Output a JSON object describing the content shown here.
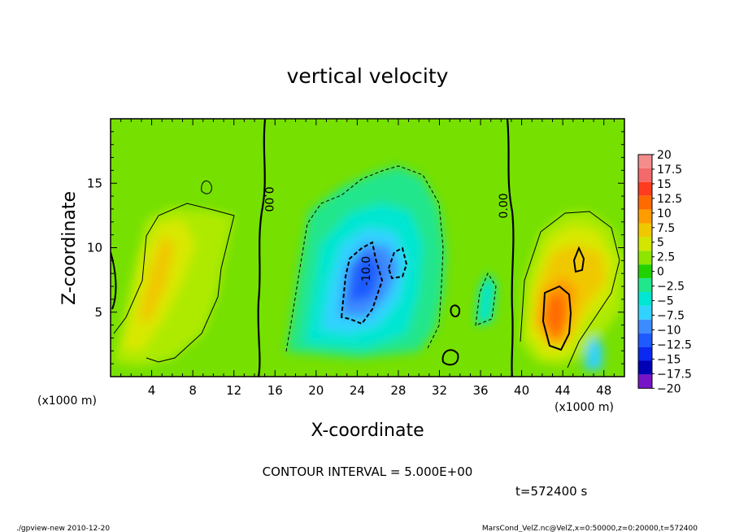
{
  "chart_data": {
    "type": "heatmap",
    "title": "vertical velocity",
    "xlabel": "X-coordinate",
    "ylabel": "Z-coordinate",
    "x_unit_left": "(x1000 m)",
    "x_unit_right": "(x1000 m)",
    "xlim": [
      0,
      50
    ],
    "ylim": [
      0,
      20
    ],
    "x_ticks": [
      4,
      8,
      12,
      16,
      20,
      24,
      28,
      32,
      36,
      40,
      44,
      48
    ],
    "x_tick_labels": [
      "4",
      "8",
      "12",
      "16",
      "20",
      "24",
      "28",
      "32",
      "36",
      "40",
      "44",
      "48"
    ],
    "y_ticks": [
      5,
      10,
      15
    ],
    "y_tick_labels": [
      "5",
      "10",
      "15"
    ],
    "colorbar": {
      "levels": [
        20,
        17.5,
        15,
        12.5,
        10,
        7.5,
        5,
        2.5,
        0,
        -2.5,
        -5,
        -7.5,
        -10,
        -12.5,
        -15,
        -17.5,
        -20
      ],
      "labels": [
        "20",
        "17.5",
        "15",
        "12.5",
        "10",
        "7.5",
        "5",
        "2.5",
        "0",
        "−2.5",
        "−5",
        "−7.5",
        "−10",
        "−12.5",
        "−15",
        "−17.5",
        "−20"
      ],
      "colors": [
        "#f48c8c",
        "#f46a6a",
        "#ff3c1e",
        "#ff6a00",
        "#ff9c00",
        "#f0c800",
        "#d2e600",
        "#8ee600",
        "#22d200",
        "#20e68c",
        "#00e6d2",
        "#32d2ff",
        "#3c8cff",
        "#1e5aff",
        "#0a28f0",
        "#0000b4",
        "#7814c8"
      ]
    },
    "contour_interval_text": "CONTOUR INTERVAL = 5.000E+00",
    "contour_labels": [
      "0.00",
      "0.00",
      "-10.0"
    ],
    "features": [
      {
        "name": "updraft-left",
        "x": 6,
        "z": 8,
        "peak": 7.5
      },
      {
        "name": "downdraft-center",
        "x": 24,
        "z": 8,
        "peak": -12.5
      },
      {
        "name": "updraft-right",
        "x": 44,
        "z": 5,
        "peak": 12.5
      },
      {
        "name": "downdraft-right-small",
        "x": 46,
        "z": 2,
        "peak": -7.5
      }
    ],
    "time_text": "t=572400 s"
  },
  "footer": {
    "left": "./gpview-new   2010-12-20",
    "right": "MarsCond_VelZ.nc@VelZ,x=0:50000,z=0:20000,t=572400"
  }
}
